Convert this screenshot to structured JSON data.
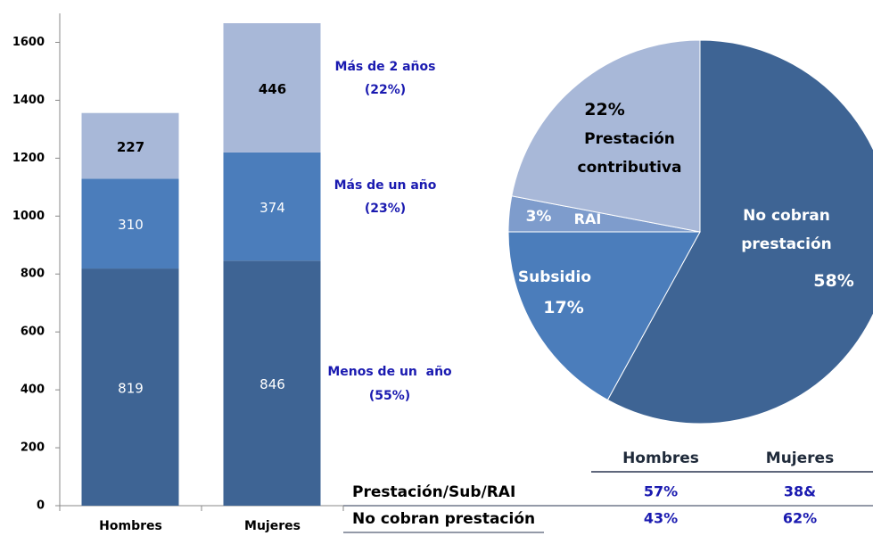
{
  "chart_data": [
    {
      "type": "bar",
      "stacked": true,
      "categories": [
        "Hombres",
        "Mujeres"
      ],
      "series": [
        {
          "name": "Menos de un  año",
          "note": "(55%)",
          "color": "#3e6494",
          "values": [
            819,
            846
          ]
        },
        {
          "name": "Más de un año",
          "note": "(23%)",
          "color": "#4b7dbb",
          "values": [
            310,
            374
          ]
        },
        {
          "name": "Más de 2 años",
          "note": "(22%)",
          "color": "#a8b8d8",
          "values": [
            227,
            446
          ]
        }
      ],
      "ylim": [
        0,
        1700
      ],
      "yticks": [
        0,
        200,
        400,
        600,
        800,
        1000,
        1200,
        1400,
        1600
      ]
    },
    {
      "type": "pie",
      "categories": [
        "No cobran prestación",
        "Subsidio",
        "RAI",
        "Prestación contributiva"
      ],
      "values": [
        58,
        17,
        3,
        22
      ],
      "value_labels": [
        "58%",
        "17%",
        "3%",
        "22%"
      ],
      "colors": [
        "#3e6494",
        "#4b7dbb",
        "#7e9ccc",
        "#a8b8d8"
      ]
    }
  ],
  "table": {
    "columns": [
      "Hombres",
      "Mujeres"
    ],
    "rows": [
      [
        "Prestación/Sub/RAI",
        "57%",
        "38&"
      ],
      [
        "No cobran prestación",
        "43%",
        "62%"
      ]
    ]
  }
}
